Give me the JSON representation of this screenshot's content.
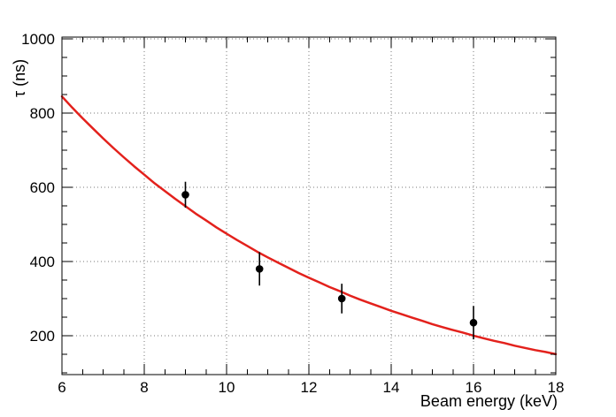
{
  "chart_data": {
    "type": "line",
    "title": "",
    "xlabel": "Beam energy (keV)",
    "ylabel": "τ (ns)",
    "xlim": [
      6,
      18
    ],
    "ylim": [
      95,
      1005
    ],
    "x_major_ticks": [
      6,
      8,
      10,
      12,
      14,
      16,
      18
    ],
    "x_minor_step": 0.5,
    "y_major_ticks": [
      200,
      400,
      600,
      800,
      1000
    ],
    "y_minor_step": 50,
    "grid": "dotted",
    "grid_color": "#777777",
    "frame_color": "#000000",
    "background_color": "#ffffff",
    "series": [
      {
        "name": "exponential-fit-curve",
        "type": "line",
        "color": "#e3211c",
        "width": 2.5,
        "x_start": 6,
        "x_end": 18,
        "x_step": 0.25,
        "y": [
          845,
          815,
          786,
          759,
          732,
          706,
          681,
          657,
          634,
          611,
          590,
          569,
          549,
          529,
          511,
          492,
          475,
          458,
          442,
          426,
          411,
          397,
          383,
          369,
          356,
          344,
          331,
          320,
          308,
          297,
          287,
          277,
          267,
          258,
          249,
          240,
          231,
          223,
          215,
          208,
          200,
          193,
          186,
          180,
          173,
          167,
          161,
          156,
          150
        ]
      },
      {
        "name": "measured-lifetimes",
        "type": "scatter-errorbars",
        "color": "#000000",
        "marker": "filled-circle",
        "points": [
          {
            "x": 9.0,
            "y": 580,
            "yerr": 35
          },
          {
            "x": 10.8,
            "y": 380,
            "yerr": 45
          },
          {
            "x": 12.8,
            "y": 300,
            "yerr": 40
          },
          {
            "x": 16.0,
            "y": 235,
            "yerr": 45
          }
        ]
      }
    ]
  }
}
